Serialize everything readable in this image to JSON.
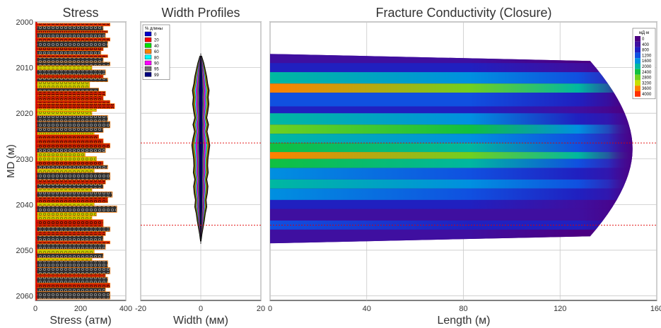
{
  "chart_data": [
    {
      "type": "bar",
      "title": "Stress",
      "xlabel": "Stress (атм)",
      "ylabel": "MD (м)",
      "xlim": [
        0,
        400
      ],
      "ylim": [
        2000,
        2061
      ],
      "x_ticks": [
        "0",
        "200",
        "400"
      ],
      "y_ticks": [
        "2000",
        "2010",
        "2020",
        "2030",
        "2040",
        "2050",
        "2060"
      ],
      "layer_colors": {
        "shale": "#2f2f2f",
        "sand": "#c8c800",
        "lime": "#c81e00",
        "edge": "#ff7a00"
      },
      "layers": [
        {
          "top": 2000.3,
          "bot": 2000.9,
          "lith": "lime",
          "value": 330
        },
        {
          "top": 2000.9,
          "bot": 2001.9,
          "lith": "shale",
          "value": 300
        },
        {
          "top": 2001.9,
          "bot": 2002.4,
          "lith": "lime",
          "value": 320
        },
        {
          "top": 2002.4,
          "bot": 2003.5,
          "lith": "shale",
          "value": 310
        },
        {
          "top": 2003.5,
          "bot": 2004.2,
          "lith": "lime",
          "value": 330
        },
        {
          "top": 2004.2,
          "bot": 2005.6,
          "lith": "shale",
          "value": 320
        },
        {
          "top": 2005.6,
          "bot": 2006.3,
          "lith": "lime",
          "value": 300
        },
        {
          "top": 2006.3,
          "bot": 2007.2,
          "lith": "shale",
          "value": 290
        },
        {
          "top": 2007.2,
          "bot": 2007.8,
          "lith": "lime",
          "value": 320
        },
        {
          "top": 2007.8,
          "bot": 2008.8,
          "lith": "shale",
          "value": 300
        },
        {
          "top": 2008.8,
          "bot": 2009.6,
          "lith": "shale",
          "value": 330
        },
        {
          "top": 2009.6,
          "bot": 2010.5,
          "lith": "sand",
          "value": 250
        },
        {
          "top": 2010.5,
          "bot": 2011.6,
          "lith": "shale",
          "value": 310
        },
        {
          "top": 2011.6,
          "bot": 2012.3,
          "lith": "lime",
          "value": 300
        },
        {
          "top": 2012.3,
          "bot": 2013.1,
          "lith": "shale",
          "value": 320
        },
        {
          "top": 2013.1,
          "bot": 2014.5,
          "lith": "sand",
          "value": 240
        },
        {
          "top": 2014.5,
          "bot": 2015.2,
          "lith": "shale",
          "value": 280
        },
        {
          "top": 2015.2,
          "bot": 2016.2,
          "lith": "lime",
          "value": 310
        },
        {
          "top": 2016.2,
          "bot": 2017.2,
          "lith": "lime",
          "value": 300
        },
        {
          "top": 2017.2,
          "bot": 2017.9,
          "lith": "lime",
          "value": 330
        },
        {
          "top": 2017.9,
          "bot": 2019.0,
          "lith": "lime",
          "value": 350
        },
        {
          "top": 2019.0,
          "bot": 2019.6,
          "lith": "sand",
          "value": 270
        },
        {
          "top": 2019.6,
          "bot": 2020.5,
          "lith": "sand",
          "value": 250
        },
        {
          "top": 2020.5,
          "bot": 2021.8,
          "lith": "shale",
          "value": 320
        },
        {
          "top": 2021.8,
          "bot": 2023.2,
          "lith": "shale",
          "value": 330
        },
        {
          "top": 2023.2,
          "bot": 2024.2,
          "lith": "shale",
          "value": 300
        },
        {
          "top": 2024.2,
          "bot": 2024.7,
          "lith": "sand",
          "value": 260
        },
        {
          "top": 2024.7,
          "bot": 2025.6,
          "lith": "lime",
          "value": 280
        },
        {
          "top": 2025.6,
          "bot": 2026.6,
          "lith": "lime",
          "value": 300
        },
        {
          "top": 2026.6,
          "bot": 2027.6,
          "lith": "lime",
          "value": 330
        },
        {
          "top": 2027.6,
          "bot": 2028.6,
          "lith": "shale",
          "value": 310
        },
        {
          "top": 2028.6,
          "bot": 2029.5,
          "lith": "sand",
          "value": 220
        },
        {
          "top": 2029.5,
          "bot": 2030.5,
          "lith": "sand",
          "value": 270
        },
        {
          "top": 2030.5,
          "bot": 2031.4,
          "lith": "lime",
          "value": 300
        },
        {
          "top": 2031.4,
          "bot": 2032.2,
          "lith": "shale",
          "value": 320
        },
        {
          "top": 2032.2,
          "bot": 2033.0,
          "lith": "sand",
          "value": 260
        },
        {
          "top": 2033.0,
          "bot": 2034.6,
          "lith": "shale",
          "value": 330
        },
        {
          "top": 2034.6,
          "bot": 2035.5,
          "lith": "lime",
          "value": 310
        },
        {
          "top": 2035.5,
          "bot": 2036.5,
          "lith": "shale",
          "value": 300
        },
        {
          "top": 2036.5,
          "bot": 2037.2,
          "lith": "sand",
          "value": 250
        },
        {
          "top": 2037.2,
          "bot": 2038.4,
          "lith": "shale",
          "value": 340
        },
        {
          "top": 2038.4,
          "bot": 2039.6,
          "lith": "lime",
          "value": 320
        },
        {
          "top": 2039.6,
          "bot": 2040.3,
          "lith": "sand",
          "value": 260
        },
        {
          "top": 2040.3,
          "bot": 2041.7,
          "lith": "shale",
          "value": 360
        },
        {
          "top": 2041.7,
          "bot": 2042.5,
          "lith": "sand",
          "value": 270
        },
        {
          "top": 2042.5,
          "bot": 2043.3,
          "lith": "sand",
          "value": 250
        },
        {
          "top": 2043.3,
          "bot": 2044.9,
          "lith": "lime",
          "value": 300
        },
        {
          "top": 2044.9,
          "bot": 2045.9,
          "lith": "shale",
          "value": 330
        },
        {
          "top": 2045.9,
          "bot": 2046.8,
          "lith": "lime",
          "value": 310
        },
        {
          "top": 2046.8,
          "bot": 2048.0,
          "lith": "shale",
          "value": 300
        },
        {
          "top": 2048.0,
          "bot": 2048.6,
          "lith": "lime",
          "value": 330
        },
        {
          "top": 2048.6,
          "bot": 2049.8,
          "lith": "shale",
          "value": 310
        },
        {
          "top": 2049.8,
          "bot": 2050.7,
          "lith": "sand",
          "value": 260
        },
        {
          "top": 2050.7,
          "bot": 2051.7,
          "lith": "shale",
          "value": 300
        },
        {
          "top": 2051.7,
          "bot": 2052.3,
          "lith": "sand",
          "value": 250
        },
        {
          "top": 2052.3,
          "bot": 2053.8,
          "lith": "shale",
          "value": 320
        },
        {
          "top": 2053.8,
          "bot": 2055.2,
          "lith": "shale",
          "value": 330
        },
        {
          "top": 2055.2,
          "bot": 2055.9,
          "lith": "lime",
          "value": 310
        },
        {
          "top": 2055.9,
          "bot": 2057.2,
          "lith": "shale",
          "value": 320
        },
        {
          "top": 2057.2,
          "bot": 2058.2,
          "lith": "lime",
          "value": 330
        },
        {
          "top": 2058.2,
          "bot": 2059.1,
          "lith": "shale",
          "value": 310
        },
        {
          "top": 2059.1,
          "bot": 2060.7,
          "lith": "shale",
          "value": 330
        }
      ]
    },
    {
      "type": "area",
      "title": "Width Profiles",
      "xlabel": "Width (мм)",
      "xlim": [
        -20,
        20
      ],
      "ylim": [
        2000,
        2061
      ],
      "x_ticks": [
        "-20",
        "0",
        "20"
      ],
      "legend": {
        "title": "% длины",
        "position": "top-left",
        "items": [
          "0",
          "20",
          "40",
          "60",
          "80",
          "90",
          "95",
          "99"
        ]
      },
      "colors": [
        "#0000cc",
        "#ff0000",
        "#00e000",
        "#ff8000",
        "#00ffff",
        "#ff00ff",
        "#707070",
        "#000080"
      ],
      "depths": [
        2007.5,
        2009.0,
        2010.5,
        2012.0,
        2013.5,
        2015.0,
        2016.5,
        2018.0,
        2019.5,
        2021.0,
        2022.5,
        2024.0,
        2025.5,
        2027.0,
        2028.5,
        2030.0,
        2031.5,
        2033.0,
        2034.5,
        2036.0,
        2037.5,
        2039.0,
        2040.5,
        2042.0,
        2043.5,
        2045.0,
        2046.5,
        2048.0
      ],
      "max_width": [
        0.3,
        1.0,
        1.5,
        2.0,
        2.3,
        2.8,
        2.5,
        2.7,
        2.4,
        2.0,
        2.6,
        2.1,
        2.6,
        3.0,
        2.7,
        2.4,
        2.3,
        2.5,
        2.0,
        2.4,
        2.2,
        1.8,
        2.0,
        1.5,
        1.2,
        0.8,
        0.4,
        0.1
      ]
    },
    {
      "type": "heatmap",
      "title": "Fracture Conductivity (Closure)",
      "xlabel": "Length (м)",
      "xlim": [
        0,
        160
      ],
      "ylim": [
        2000,
        2061
      ],
      "x_ticks": [
        "0",
        "40",
        "80",
        "120",
        "160"
      ],
      "legend": {
        "title": "мД·м",
        "position": "top-right",
        "items": [
          "0",
          "400",
          "800",
          "1200",
          "1600",
          "2000",
          "2400",
          "2800",
          "3200",
          "3600",
          "4000"
        ]
      },
      "colorscale": [
        "#4b0082",
        "#3f0fa0",
        "#2020c0",
        "#1050e0",
        "#0090e0",
        "#00b8a0",
        "#10c040",
        "#70d020",
        "#c8e000",
        "#ff8000",
        "#ff3000"
      ],
      "fracture_top": 2007.0,
      "fracture_bottom": 2048.5,
      "tip_length_m": 150,
      "layers": [
        {
          "top": 2007.0,
          "bot": 2009.0,
          "value": 300
        },
        {
          "top": 2009.0,
          "bot": 2011.0,
          "value": 900
        },
        {
          "top": 2011.0,
          "bot": 2013.5,
          "value": 2000
        },
        {
          "top": 2013.5,
          "bot": 2015.5,
          "value": 3500
        },
        {
          "top": 2015.5,
          "bot": 2018.5,
          "value": 1300
        },
        {
          "top": 2018.5,
          "bot": 2020.0,
          "value": 800
        },
        {
          "top": 2020.0,
          "bot": 2022.5,
          "value": 1800
        },
        {
          "top": 2022.5,
          "bot": 2024.5,
          "value": 2600
        },
        {
          "top": 2024.5,
          "bot": 2026.5,
          "value": 1900
        },
        {
          "top": 2026.5,
          "bot": 2028.5,
          "value": 2400
        },
        {
          "top": 2028.5,
          "bot": 2030.0,
          "value": 3400
        },
        {
          "top": 2030.0,
          "bot": 2032.0,
          "value": 2200
        },
        {
          "top": 2032.0,
          "bot": 2034.5,
          "value": 1500
        },
        {
          "top": 2034.5,
          "bot": 2036.5,
          "value": 2100
        },
        {
          "top": 2036.5,
          "bot": 2039.0,
          "value": 1600
        },
        {
          "top": 2039.0,
          "bot": 2041.0,
          "value": 900
        },
        {
          "top": 2041.0,
          "bot": 2043.5,
          "value": 500
        },
        {
          "top": 2043.5,
          "bot": 2045.5,
          "value": 1100
        },
        {
          "top": 2045.5,
          "bot": 2048.5,
          "value": 300
        }
      ]
    }
  ],
  "reference_depths": [
    2026.5,
    2044.5
  ]
}
